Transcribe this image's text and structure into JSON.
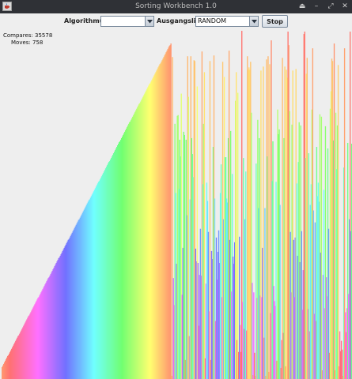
{
  "window": {
    "title": "Sorting Workbench 1.0",
    "app_icon": "java-cup-icon",
    "controls": [
      "eject-icon",
      "minimize-icon",
      "restore-icon",
      "close-icon"
    ]
  },
  "toolbar": {
    "algorithm_label": "Algorithmus:",
    "algorithm_value": "",
    "list_label": "Ausgangsliste:",
    "list_value": "RANDOM",
    "stop_label": "Stop"
  },
  "stats": {
    "compares_label": "Compares:",
    "compares_value": "35578",
    "moves_label": "Moves:",
    "moves_value": "758"
  },
  "visualization": {
    "element_count": 440,
    "max_value": 440,
    "sorted_fraction": 0.485,
    "seed": 7,
    "colors": {
      "canvas_background": "#eeeeee",
      "titlebar": "#2f3136",
      "bar_saturation": 1.0,
      "bar_lightness": 0.72
    }
  }
}
